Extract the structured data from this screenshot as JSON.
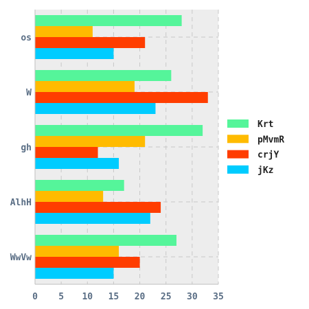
{
  "chart_data": {
    "type": "bar",
    "orientation": "horizontal",
    "categories": [
      "os",
      "W",
      "gh",
      "AlhH",
      "WwVw"
    ],
    "series": [
      {
        "name": "Krt",
        "color": "#55f59a",
        "values": [
          28,
          26,
          32,
          17,
          27
        ]
      },
      {
        "name": "pMvmR",
        "color": "#ffbb00",
        "values": [
          11,
          19,
          21,
          13,
          16
        ]
      },
      {
        "name": "crjY",
        "color": "#ff3d00",
        "values": [
          21,
          33,
          12,
          24,
          20
        ]
      },
      {
        "name": "jKz",
        "color": "#00ccff",
        "values": [
          15,
          23,
          16,
          22,
          15
        ]
      }
    ],
    "xlim": [
      0,
      35
    ],
    "xticks": [
      0,
      5,
      10,
      15,
      20,
      25,
      30,
      35
    ],
    "title": "",
    "xlabel": "",
    "ylabel": "",
    "grid": true,
    "legend_position": "right",
    "background": "#ededed"
  }
}
